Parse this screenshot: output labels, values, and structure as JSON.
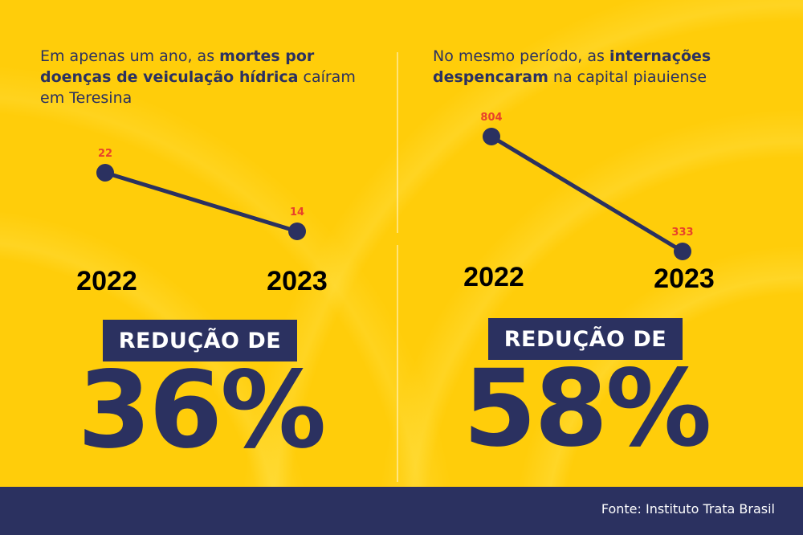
{
  "colors": {
    "background": "#FFCD0A",
    "navy": "#2B3160",
    "label_red": "#E8412B"
  },
  "left": {
    "intro_plain1": "Em apenas um ano, as ",
    "intro_bold": "mortes por doenças de veiculação hídrica",
    "intro_plain2": " caíram em Teresina",
    "badge": "REDUÇÃO DE",
    "big_value": "36%"
  },
  "right": {
    "intro_plain1": "No mesmo período, as ",
    "intro_bold1": "internações despencaram",
    "intro_plain2": " na capital piauiense",
    "badge": "REDUÇÃO DE",
    "big_value": "58%"
  },
  "chart_data": [
    {
      "type": "line",
      "categories": [
        "2022",
        "2023"
      ],
      "values": [
        22,
        14
      ],
      "labels": [
        "22",
        "14"
      ]
    },
    {
      "type": "line",
      "categories": [
        "2022",
        "2023"
      ],
      "values": [
        804,
        333
      ],
      "labels": [
        "804",
        "333"
      ]
    }
  ],
  "footer": {
    "source": "Fonte: Instituto Trata Brasil"
  }
}
